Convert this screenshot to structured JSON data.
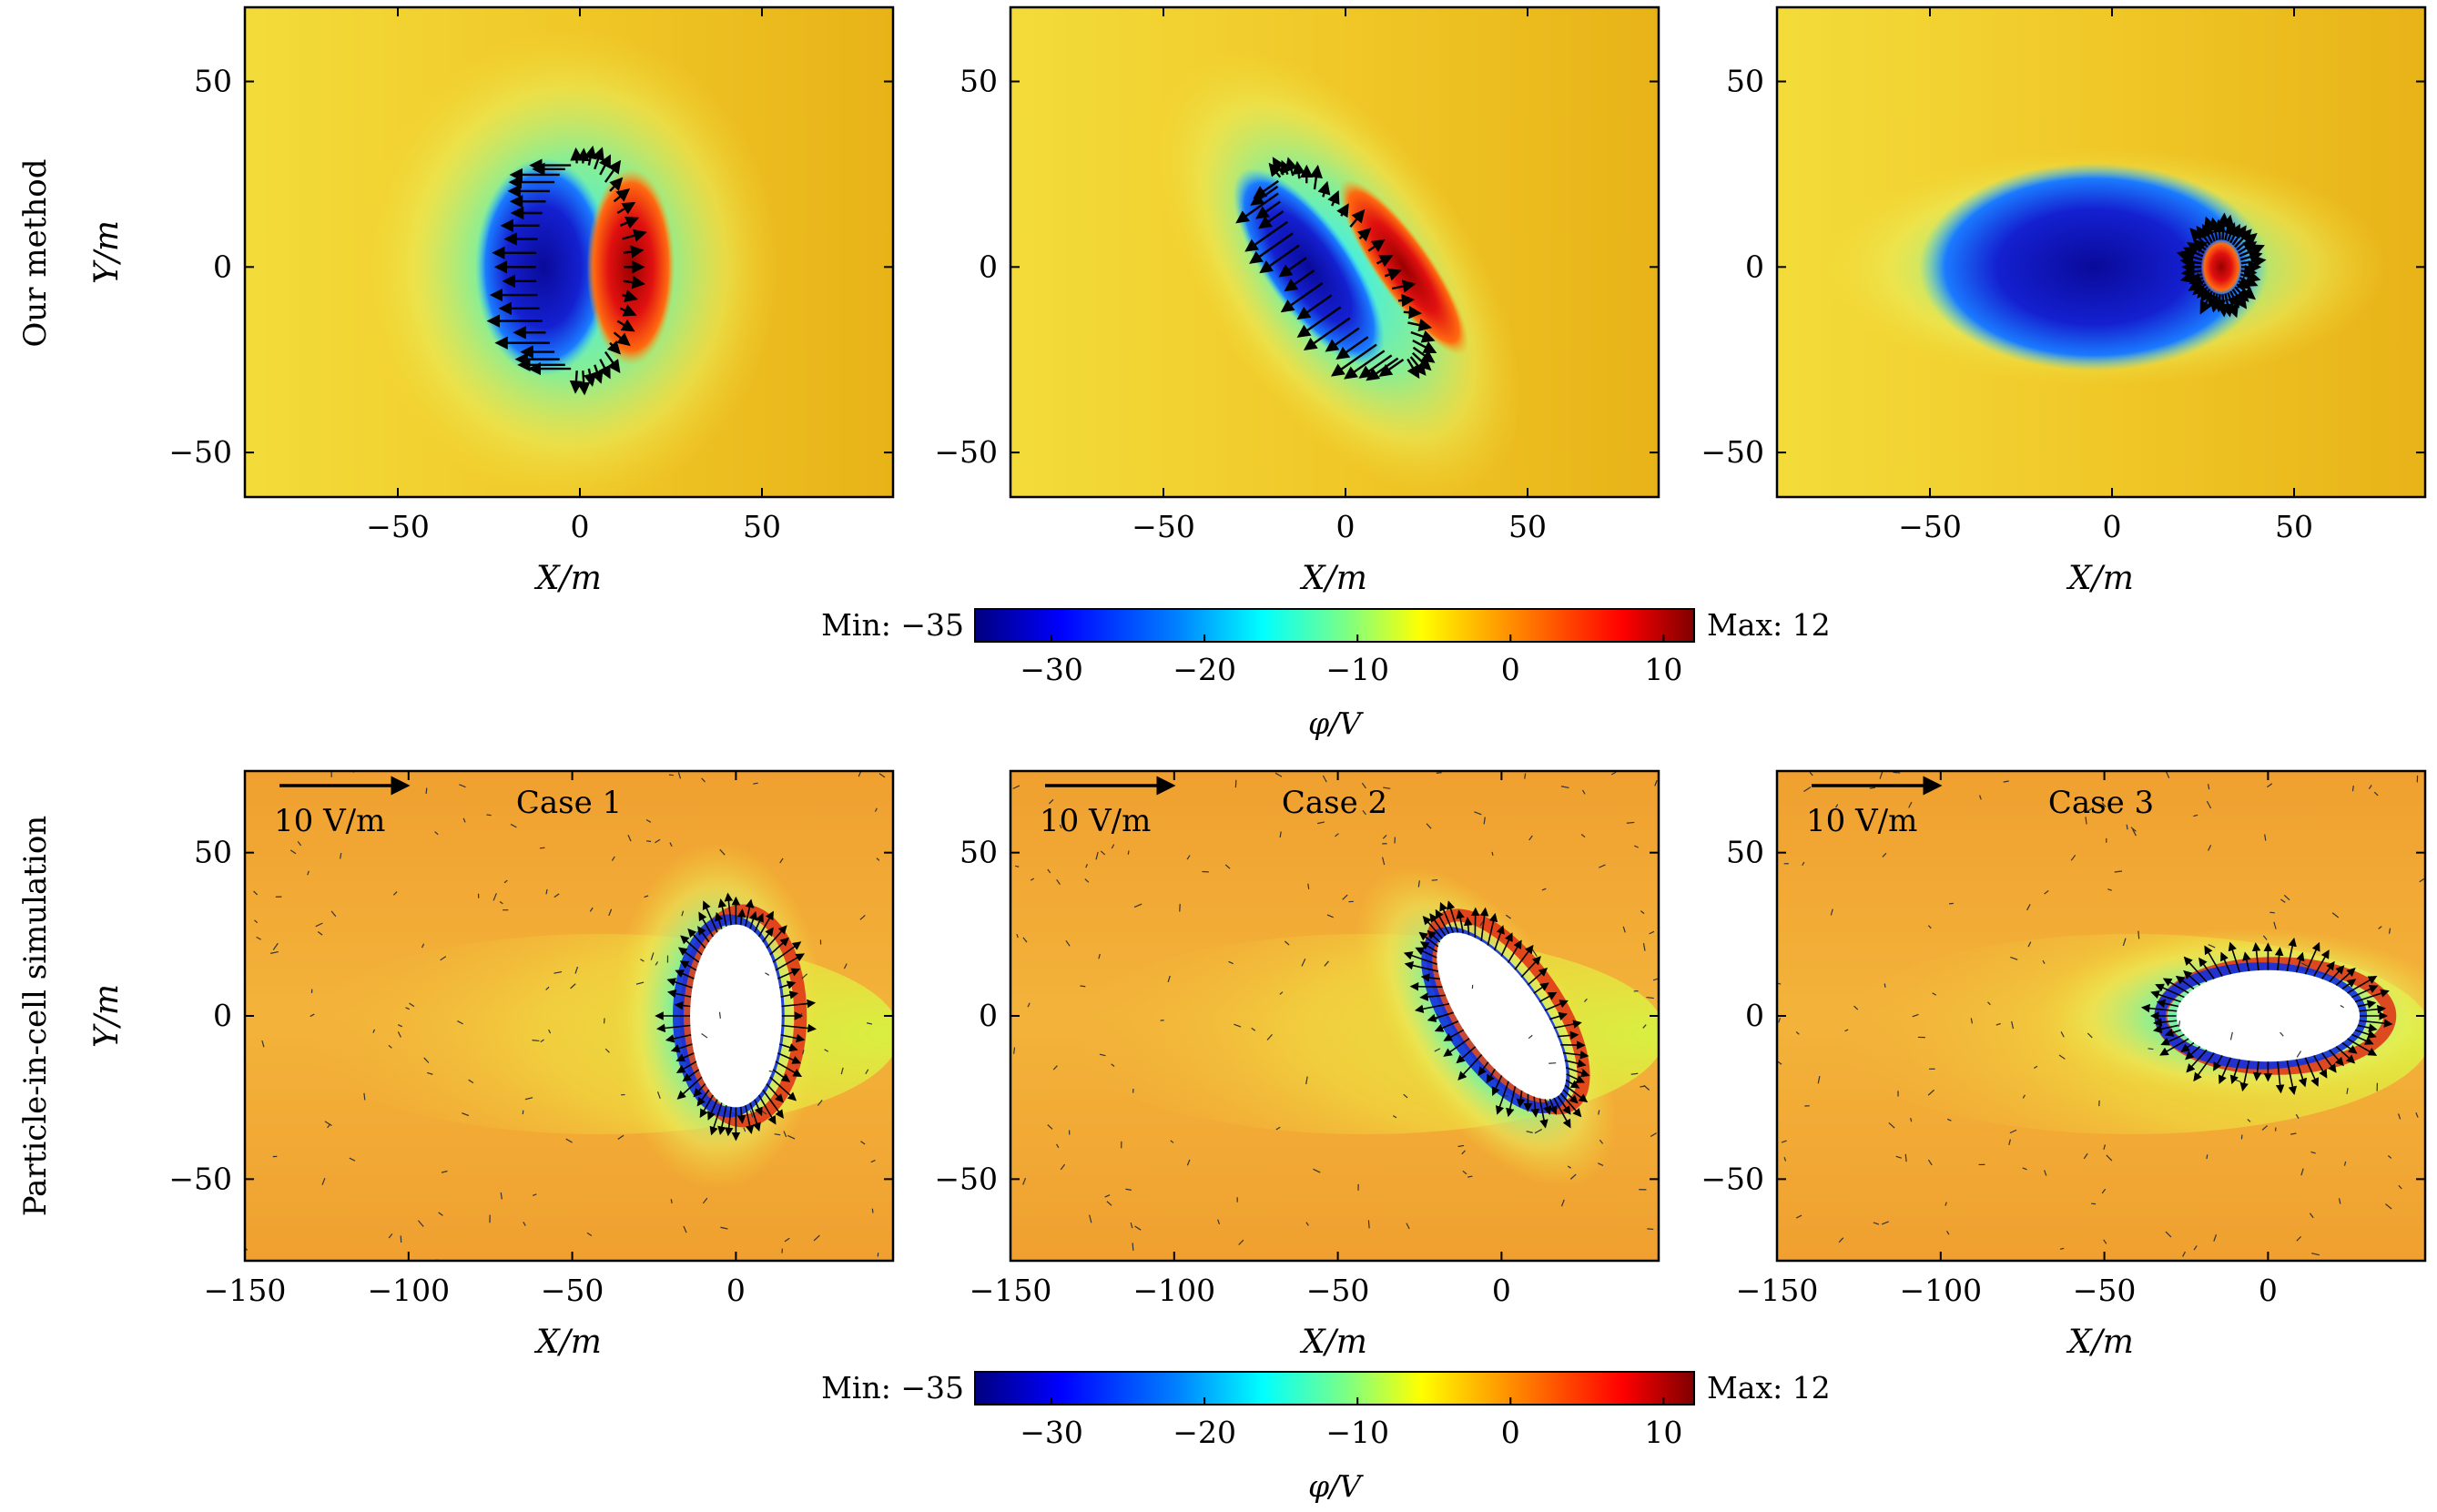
{
  "chart_data": [
    {
      "type": "heatmap",
      "row_label": "Our method",
      "xlabel": "X/m",
      "ylabel": "Y/m",
      "xlim": [
        -92,
        86
      ],
      "ylim": [
        -62,
        70
      ],
      "xticks": [
        -50,
        0,
        50
      ],
      "xtick_labels": [
        "−50",
        "0",
        "50"
      ],
      "yticks": [
        -50,
        0,
        50
      ],
      "ytick_labels": [
        "−50",
        "0",
        "50"
      ],
      "panels": [
        {
          "case": "1",
          "object_center": [
            0,
            0
          ],
          "object_semi_axes": [
            22,
            28
          ],
          "rotation_deg": 0,
          "min_at_x": -10,
          "max_at_x": 14
        },
        {
          "case": "2",
          "object_center": [
            0,
            0
          ],
          "object_semi_axes": [
            14,
            30
          ],
          "rotation_deg": -35,
          "min_at_x": -10,
          "max_at_x": 16
        },
        {
          "case": "3",
          "object_center": [
            0,
            0
          ],
          "object_semi_axes": [
            30,
            14
          ],
          "rotation_deg": 0,
          "min_at_x": -5,
          "max_at_x": 30
        }
      ]
    },
    {
      "type": "heatmap",
      "row_label": "Particle-in-cell simulation",
      "xlabel": "X/m",
      "ylabel": "Y/m",
      "xlim": [
        -150,
        48
      ],
      "ylim": [
        -75,
        75
      ],
      "xticks": [
        -150,
        -100,
        -50,
        0
      ],
      "xtick_labels": [
        "−150",
        "−100",
        "−50",
        "0"
      ],
      "yticks": [
        -50,
        0,
        50
      ],
      "ytick_labels": [
        "−50",
        "0",
        "50"
      ],
      "reference_vector": "10 V/m",
      "panels": [
        {
          "case_label": "Case 1",
          "object_center": [
            0,
            0
          ],
          "object_semi_axes": [
            14,
            28
          ],
          "rotation_deg": 0
        },
        {
          "case_label": "Case 2",
          "object_center": [
            0,
            0
          ],
          "object_semi_axes": [
            12,
            30
          ],
          "rotation_deg": -35
        },
        {
          "case_label": "Case 3",
          "object_center": [
            0,
            0
          ],
          "object_semi_axes": [
            28,
            14
          ],
          "rotation_deg": 0
        }
      ]
    }
  ],
  "colorbar": {
    "min_label": "Min: −35",
    "max_label": "Max: 12",
    "vmin": -35,
    "vmax": 12,
    "ticks": [
      -30,
      -20,
      -10,
      0,
      10
    ],
    "tick_labels": [
      "−30",
      "−20",
      "−10",
      "0",
      "10"
    ],
    "label": "φ/V",
    "colormap": [
      "#00007f",
      "#0000ff",
      "#0080ff",
      "#00ffff",
      "#80ff80",
      "#ffff00",
      "#ff8000",
      "#ff0000",
      "#7f0000"
    ]
  },
  "colors": {
    "background_top": "#f0c020",
    "background_bottom": "#f0a030",
    "arrow": "#000000"
  }
}
